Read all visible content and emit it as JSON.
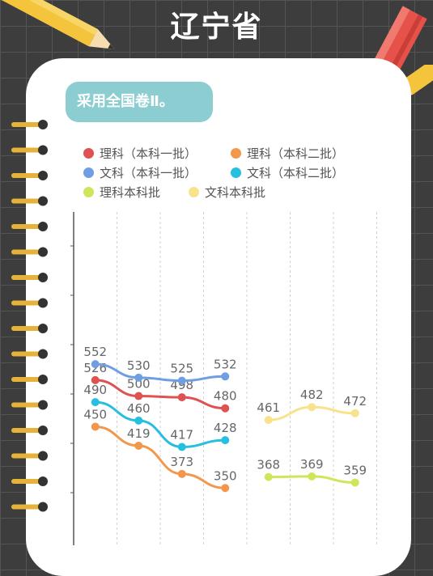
{
  "page": {
    "title": "辽宁省",
    "note": "采用全国卷Ⅱ。",
    "background_color": "#3d3d3d",
    "card_color": "#ffffff",
    "badge_color": "#8ccdd2"
  },
  "decor": {
    "icons": [
      "pencil-icon-yellow",
      "pencil-icon-red",
      "spiral-binding-icon"
    ]
  },
  "chart_data": {
    "type": "line",
    "title": "",
    "xlabel": "",
    "ylabel": "",
    "ylim": [
      320,
      580
    ],
    "grid": "vertical-dashed",
    "legend_position": "top",
    "x_slots": 7,
    "series": [
      {
        "name": "理科（本科一批）",
        "color": "#df5252",
        "x": [
          0,
          1,
          2,
          3
        ],
        "values": [
          526,
          500,
          498,
          480
        ]
      },
      {
        "name": "理科（本科二批）",
        "color": "#f3974c",
        "x": [
          0,
          1,
          2,
          3
        ],
        "values": [
          450,
          419,
          373,
          350
        ]
      },
      {
        "name": "文科（本科一批）",
        "color": "#6f9ee2",
        "x": [
          0,
          1,
          2,
          3
        ],
        "values": [
          552,
          530,
          525,
          532
        ]
      },
      {
        "name": "文科（本科二批）",
        "color": "#26bfe0",
        "x": [
          0,
          1,
          2,
          3
        ],
        "values": [
          490,
          460,
          417,
          428
        ]
      },
      {
        "name": "理科本科批",
        "color": "#cde65a",
        "x": [
          4,
          5,
          6
        ],
        "values": [
          368,
          369,
          359
        ]
      },
      {
        "name": "文科本科批",
        "color": "#f8e38c",
        "x": [
          4,
          5,
          6
        ],
        "values": [
          461,
          482,
          472
        ]
      }
    ]
  }
}
